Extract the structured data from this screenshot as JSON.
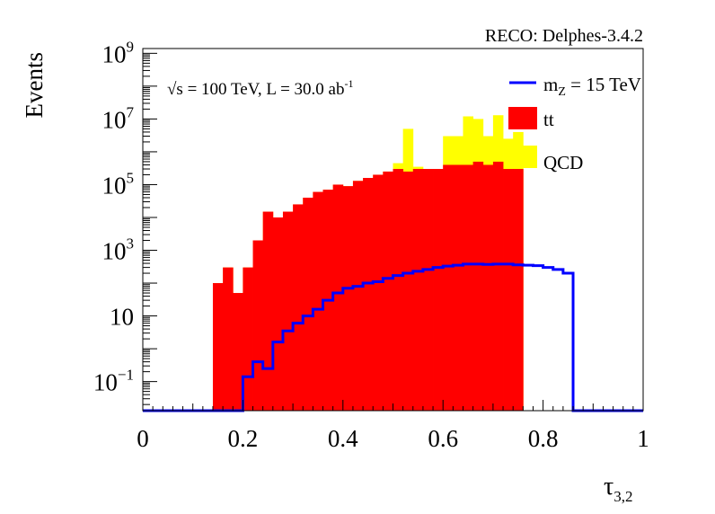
{
  "header": {
    "reco_label": "RECO: Delphes-3.4.2"
  },
  "annotation": {
    "energy_lumi": "√s = 100 TeV, L = 30.0 ab",
    "lumi_exponent": "-1"
  },
  "chart_data": {
    "type": "histogram",
    "xlabel_symbol": "τ",
    "xlabel_subscript": "3,2",
    "ylabel": "Events",
    "xlim": [
      0,
      1
    ],
    "ylog": true,
    "ylim": [
      0.013,
      1400000000
    ],
    "bin_width": 0.02,
    "xticks": [
      "0",
      "0.2",
      "0.4",
      "0.6",
      "0.8",
      "1"
    ],
    "yticks": [
      {
        "value": 0.1,
        "base": "10",
        "exp": "−1"
      },
      {
        "value": 10,
        "base": "10",
        "exp": ""
      },
      {
        "value": 1000,
        "base": "10",
        "exp": "3"
      },
      {
        "value": 100000,
        "base": "10",
        "exp": "5"
      },
      {
        "value": 10000000,
        "base": "10",
        "exp": "7"
      },
      {
        "value": 1000000000,
        "base": "10",
        "exp": "9"
      }
    ],
    "legend_position": "top-right",
    "series": [
      {
        "name": "QCD",
        "legend_label": "QCD",
        "style": "fill",
        "color": "#ffff00",
        "bins_start": 0.14,
        "values": [
          100,
          300,
          50,
          300,
          2000,
          15000,
          10000,
          15000,
          25000,
          40000,
          60000,
          70000,
          100000,
          90000,
          130000,
          160000,
          200000,
          250000,
          450000,
          5000000,
          350000,
          300000,
          300000,
          3000000,
          3000000,
          12000000,
          10000000,
          3000000,
          13000000,
          2500000,
          4000000
        ]
      },
      {
        "name": "tt",
        "legend_label": "tt",
        "style": "fill",
        "color": "#ff0000",
        "bins_start": 0.14,
        "values": [
          100,
          300,
          50,
          300,
          2000,
          15000,
          10000,
          15000,
          25000,
          40000,
          60000,
          70000,
          100000,
          90000,
          130000,
          160000,
          200000,
          250000,
          300000,
          250000,
          300000,
          300000,
          300000,
          400000,
          400000,
          400000,
          500000,
          400000,
          500000,
          300000,
          300000
        ]
      },
      {
        "name": "m_Z = 15 TeV",
        "legend_label": "m",
        "legend_sub": "Z",
        "legend_suffix": " = 15 TeV",
        "style": "line",
        "color": "#0000ff",
        "bins_start": 0.2,
        "values": [
          0.14,
          0.4,
          0.25,
          1.6,
          3.5,
          6,
          10,
          16,
          30,
          50,
          70,
          80,
          100,
          110,
          140,
          170,
          200,
          230,
          260,
          300,
          330,
          350,
          380,
          380,
          370,
          380,
          380,
          360,
          350,
          340,
          300,
          260,
          200
        ]
      }
    ]
  }
}
